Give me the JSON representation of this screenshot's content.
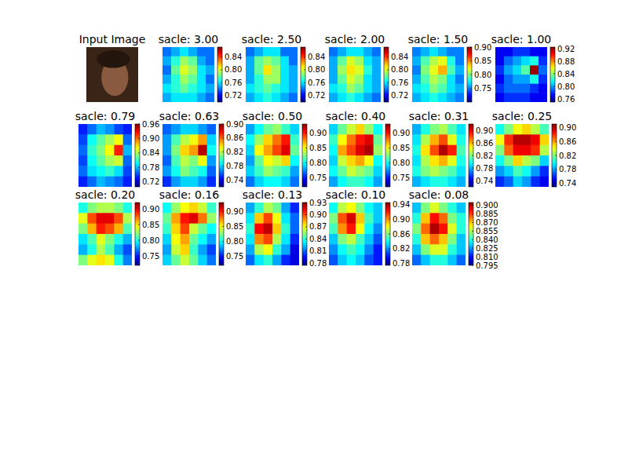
{
  "chart_data": [
    {
      "type": "image",
      "title": "Input Image",
      "tick_labels": false
    },
    {
      "type": "heatmap",
      "title": "sacle: 3.00",
      "tick_labels": false,
      "colorbar_lim": [
        0.7,
        0.87
      ],
      "colorbar_ticks": [
        0.72,
        0.76,
        {
          "value": 0.8,
          "label": "0.80"
        },
        0.84
      ],
      "cells": [
        [
          0.74,
          0.75,
          0.76,
          0.75,
          0.74,
          0.74
        ],
        [
          0.75,
          0.77,
          0.79,
          0.78,
          0.75,
          0.74
        ],
        [
          0.74,
          0.78,
          0.8,
          0.79,
          0.76,
          0.75
        ],
        [
          0.75,
          0.77,
          0.79,
          0.78,
          0.76,
          0.74
        ],
        [
          0.76,
          0.77,
          0.78,
          0.77,
          0.76,
          0.75
        ],
        [
          0.75,
          0.76,
          0.76,
          0.76,
          0.75,
          0.74
        ]
      ]
    },
    {
      "type": "heatmap",
      "title": "sacle: 2.50",
      "tick_labels": false,
      "colorbar_lim": [
        0.7,
        0.87
      ],
      "colorbar_ticks": [
        0.72,
        0.76,
        {
          "value": 0.8,
          "label": "0.80"
        },
        0.84
      ],
      "cells": [
        [
          0.74,
          0.75,
          0.76,
          0.76,
          0.74,
          0.74
        ],
        [
          0.75,
          0.78,
          0.79,
          0.78,
          0.76,
          0.74
        ],
        [
          0.75,
          0.78,
          0.81,
          0.79,
          0.76,
          0.75
        ],
        [
          0.75,
          0.77,
          0.79,
          0.79,
          0.76,
          0.75
        ],
        [
          0.76,
          0.77,
          0.78,
          0.77,
          0.76,
          0.75
        ],
        [
          0.75,
          0.76,
          0.77,
          0.76,
          0.75,
          0.74
        ]
      ]
    },
    {
      "type": "heatmap",
      "title": "sacle: 2.00",
      "tick_labels": false,
      "colorbar_lim": [
        0.7,
        0.87
      ],
      "colorbar_ticks": [
        0.72,
        0.76,
        {
          "value": 0.8,
          "label": "0.80"
        },
        0.84
      ],
      "cells": [
        [
          0.74,
          0.75,
          0.76,
          0.76,
          0.75,
          0.74
        ],
        [
          0.75,
          0.78,
          0.8,
          0.79,
          0.76,
          0.75
        ],
        [
          0.75,
          0.79,
          0.81,
          0.8,
          0.77,
          0.75
        ],
        [
          0.75,
          0.78,
          0.8,
          0.79,
          0.76,
          0.75
        ],
        [
          0.76,
          0.77,
          0.79,
          0.78,
          0.76,
          0.75
        ],
        [
          0.75,
          0.76,
          0.77,
          0.76,
          0.75,
          0.74
        ]
      ]
    },
    {
      "type": "heatmap",
      "title": "sacle: 1.50",
      "tick_labels": false,
      "colorbar_lim": [
        0.7,
        0.9
      ],
      "colorbar_ticks": [
        0.75,
        {
          "value": 0.8,
          "label": "0.80"
        },
        0.85,
        {
          "value": 0.9,
          "label": "0.90"
        }
      ],
      "cells": [
        [
          0.75,
          0.76,
          0.77,
          0.76,
          0.75,
          0.75
        ],
        [
          0.76,
          0.79,
          0.81,
          0.82,
          0.78,
          0.75
        ],
        [
          0.75,
          0.8,
          0.82,
          0.84,
          0.79,
          0.76
        ],
        [
          0.76,
          0.79,
          0.81,
          0.8,
          0.77,
          0.75
        ],
        [
          0.77,
          0.78,
          0.8,
          0.79,
          0.77,
          0.76
        ],
        [
          0.76,
          0.77,
          0.78,
          0.77,
          0.76,
          0.75
        ]
      ]
    },
    {
      "type": "heatmap",
      "title": "sacle: 1.00",
      "tick_labels": false,
      "colorbar_lim": [
        0.75,
        0.925
      ],
      "colorbar_ticks": [
        0.76,
        {
          "value": 0.8,
          "label": "0.80"
        },
        0.84,
        0.88,
        0.92
      ],
      "cells": [
        [
          0.77,
          0.77,
          0.78,
          0.78,
          0.77,
          0.77
        ],
        [
          0.77,
          0.79,
          0.8,
          0.81,
          0.82,
          0.78
        ],
        [
          0.78,
          0.8,
          0.81,
          0.83,
          0.92,
          0.79
        ],
        [
          0.77,
          0.79,
          0.8,
          0.8,
          0.82,
          0.78
        ],
        [
          0.78,
          0.79,
          0.79,
          0.79,
          0.78,
          0.77
        ],
        [
          0.77,
          0.78,
          0.78,
          0.78,
          0.77,
          0.77
        ]
      ]
    },
    {
      "type": "heatmap",
      "title": "sacle: 0.79",
      "tick_labels": false,
      "colorbar_lim": [
        0.7,
        0.96
      ],
      "colorbar_ticks": [
        0.72,
        0.78,
        0.84,
        {
          "value": 0.9,
          "label": "0.90"
        },
        0.96
      ],
      "cells": [
        [
          0.74,
          0.76,
          0.78,
          0.77,
          0.75,
          0.74
        ],
        [
          0.75,
          0.8,
          0.82,
          0.84,
          0.86,
          0.76
        ],
        [
          0.76,
          0.81,
          0.83,
          0.86,
          0.92,
          0.78
        ],
        [
          0.75,
          0.8,
          0.82,
          0.84,
          0.85,
          0.76
        ],
        [
          0.76,
          0.79,
          0.8,
          0.81,
          0.79,
          0.75
        ],
        [
          0.74,
          0.76,
          0.78,
          0.77,
          0.76,
          0.74
        ]
      ]
    },
    {
      "type": "heatmap",
      "title": "sacle: 0.63",
      "tick_labels": false,
      "colorbar_lim": [
        0.72,
        0.9
      ],
      "colorbar_ticks": [
        0.74,
        0.78,
        0.82,
        0.86,
        {
          "value": 0.9,
          "label": "0.90"
        }
      ],
      "cells": [
        [
          0.76,
          0.77,
          0.78,
          0.78,
          0.77,
          0.76
        ],
        [
          0.77,
          0.8,
          0.82,
          0.83,
          0.85,
          0.78
        ],
        [
          0.77,
          0.81,
          0.84,
          0.85,
          0.89,
          0.79
        ],
        [
          0.76,
          0.8,
          0.82,
          0.81,
          0.83,
          0.77
        ],
        [
          0.77,
          0.79,
          0.81,
          0.8,
          0.79,
          0.76
        ],
        [
          0.75,
          0.77,
          0.78,
          0.78,
          0.77,
          0.75
        ]
      ]
    },
    {
      "type": "heatmap",
      "title": "sacle: 0.50",
      "tick_labels": false,
      "colorbar_lim": [
        0.72,
        0.93
      ],
      "colorbar_ticks": [
        0.75,
        {
          "value": 0.8,
          "label": "0.80"
        },
        0.85,
        {
          "value": 0.9,
          "label": "0.90"
        }
      ],
      "cells": [
        [
          0.78,
          0.8,
          0.82,
          0.83,
          0.81,
          0.79
        ],
        [
          0.8,
          0.83,
          0.86,
          0.88,
          0.9,
          0.81
        ],
        [
          0.79,
          0.85,
          0.87,
          0.89,
          0.91,
          0.82
        ],
        [
          0.78,
          0.82,
          0.85,
          0.84,
          0.86,
          0.8
        ],
        [
          0.79,
          0.81,
          0.83,
          0.82,
          0.81,
          0.78
        ],
        [
          0.77,
          0.79,
          0.8,
          0.8,
          0.79,
          0.77
        ]
      ]
    },
    {
      "type": "heatmap",
      "title": "sacle: 0.40",
      "tick_labels": false,
      "colorbar_lim": [
        0.72,
        0.93
      ],
      "colorbar_ticks": [
        0.75,
        {
          "value": 0.8,
          "label": "0.80"
        },
        0.85,
        {
          "value": 0.9,
          "label": "0.90"
        }
      ],
      "cells": [
        [
          0.79,
          0.82,
          0.84,
          0.86,
          0.83,
          0.8
        ],
        [
          0.81,
          0.85,
          0.88,
          0.9,
          0.91,
          0.82
        ],
        [
          0.8,
          0.87,
          0.89,
          0.91,
          0.92,
          0.83
        ],
        [
          0.79,
          0.84,
          0.86,
          0.87,
          0.85,
          0.8
        ],
        [
          0.8,
          0.82,
          0.84,
          0.83,
          0.82,
          0.79
        ],
        [
          0.78,
          0.8,
          0.81,
          0.81,
          0.8,
          0.78
        ]
      ]
    },
    {
      "type": "heatmap",
      "title": "sacle: 0.31",
      "tick_labels": false,
      "colorbar_lim": [
        0.72,
        0.92
      ],
      "colorbar_ticks": [
        0.74,
        0.78,
        0.82,
        0.86,
        {
          "value": 0.9,
          "label": "0.90"
        }
      ],
      "cells": [
        [
          0.78,
          0.8,
          0.82,
          0.83,
          0.81,
          0.79
        ],
        [
          0.79,
          0.83,
          0.86,
          0.88,
          0.84,
          0.8
        ],
        [
          0.8,
          0.85,
          0.88,
          0.91,
          0.89,
          0.81
        ],
        [
          0.79,
          0.83,
          0.85,
          0.86,
          0.84,
          0.8
        ],
        [
          0.8,
          0.82,
          0.83,
          0.82,
          0.81,
          0.79
        ],
        [
          0.78,
          0.79,
          0.8,
          0.8,
          0.79,
          0.78
        ]
      ]
    },
    {
      "type": "heatmap",
      "title": "sacle: 0.25",
      "tick_labels": false,
      "colorbar_lim": [
        0.73,
        0.91
      ],
      "colorbar_ticks": [
        0.74,
        0.78,
        0.82,
        0.86,
        {
          "value": 0.9,
          "label": "0.90"
        }
      ],
      "cells": [
        [
          0.8,
          0.82,
          0.84,
          0.85,
          0.83,
          0.81
        ],
        [
          0.84,
          0.88,
          0.9,
          0.9,
          0.89,
          0.85
        ],
        [
          0.82,
          0.87,
          0.89,
          0.89,
          0.88,
          0.83
        ],
        [
          0.8,
          0.82,
          0.85,
          0.83,
          0.82,
          0.79
        ],
        [
          0.78,
          0.79,
          0.81,
          0.8,
          0.78,
          0.76
        ],
        [
          0.76,
          0.77,
          0.79,
          0.78,
          0.76,
          0.75
        ]
      ]
    },
    {
      "type": "heatmap",
      "title": "sacle: 0.20",
      "tick_labels": false,
      "colorbar_lim": [
        0.72,
        0.92
      ],
      "colorbar_ticks": [
        0.75,
        {
          "value": 0.8,
          "label": "0.80"
        },
        0.85,
        {
          "value": 0.9,
          "label": "0.90"
        }
      ],
      "cells": [
        [
          0.8,
          0.82,
          0.83,
          0.83,
          0.82,
          0.8
        ],
        [
          0.84,
          0.88,
          0.9,
          0.9,
          0.88,
          0.83
        ],
        [
          0.82,
          0.86,
          0.89,
          0.88,
          0.86,
          0.81
        ],
        [
          0.79,
          0.81,
          0.84,
          0.82,
          0.8,
          0.78
        ],
        [
          0.78,
          0.8,
          0.83,
          0.81,
          0.78,
          0.76
        ],
        [
          0.82,
          0.84,
          0.85,
          0.84,
          0.8,
          0.77
        ]
      ]
    },
    {
      "type": "heatmap",
      "title": "sacle: 0.16",
      "tick_labels": false,
      "colorbar_lim": [
        0.72,
        0.93
      ],
      "colorbar_ticks": [
        0.75,
        {
          "value": 0.8,
          "label": "0.80"
        },
        0.85,
        {
          "value": 0.9,
          "label": "0.90"
        }
      ],
      "cells": [
        [
          0.8,
          0.83,
          0.85,
          0.86,
          0.84,
          0.81
        ],
        [
          0.82,
          0.87,
          0.9,
          0.91,
          0.88,
          0.83
        ],
        [
          0.81,
          0.86,
          0.89,
          0.84,
          0.82,
          0.8
        ],
        [
          0.79,
          0.85,
          0.87,
          0.82,
          0.8,
          0.78
        ],
        [
          0.78,
          0.84,
          0.86,
          0.81,
          0.78,
          0.76
        ],
        [
          0.79,
          0.82,
          0.84,
          0.82,
          0.79,
          0.77
        ]
      ]
    },
    {
      "type": "heatmap",
      "title": "sacle: 0.13",
      "tick_labels": false,
      "colorbar_lim": [
        0.775,
        0.93
      ],
      "colorbar_ticks": [
        0.78,
        0.81,
        0.84,
        0.87,
        {
          "value": 0.9,
          "label": "0.90"
        },
        0.93
      ],
      "cells": [
        [
          0.82,
          0.84,
          0.86,
          0.85,
          0.82,
          0.8
        ],
        [
          0.83,
          0.88,
          0.9,
          0.87,
          0.83,
          0.81
        ],
        [
          0.84,
          0.91,
          0.92,
          0.88,
          0.84,
          0.81
        ],
        [
          0.83,
          0.89,
          0.9,
          0.86,
          0.83,
          0.8
        ],
        [
          0.82,
          0.86,
          0.87,
          0.84,
          0.82,
          0.79
        ],
        [
          0.81,
          0.83,
          0.84,
          0.82,
          0.8,
          0.79
        ]
      ]
    },
    {
      "type": "heatmap",
      "title": "sacle: 0.10",
      "tick_labels": false,
      "colorbar_lim": [
        0.775,
        0.945
      ],
      "colorbar_ticks": [
        0.78,
        0.82,
        0.86,
        {
          "value": 0.9,
          "label": "0.90"
        },
        0.94
      ],
      "cells": [
        [
          0.84,
          0.87,
          0.88,
          0.86,
          0.84,
          0.83
        ],
        [
          0.86,
          0.91,
          0.93,
          0.89,
          0.85,
          0.83
        ],
        [
          0.85,
          0.9,
          0.92,
          0.88,
          0.84,
          0.82
        ],
        [
          0.83,
          0.86,
          0.87,
          0.85,
          0.83,
          0.81
        ],
        [
          0.82,
          0.84,
          0.85,
          0.84,
          0.82,
          0.8
        ],
        [
          0.81,
          0.83,
          0.84,
          0.83,
          0.81,
          0.8
        ]
      ]
    },
    {
      "type": "heatmap",
      "title": "sacle: 0.08",
      "tick_labels": false,
      "colorbar_lim": [
        0.795,
        0.905
      ],
      "colorbar_ticks": [
        0.795,
        {
          "value": 0.81,
          "label": "0.810"
        },
        0.825,
        {
          "value": 0.84,
          "label": "0.840"
        },
        0.855,
        {
          "value": 0.87,
          "label": "0.870"
        },
        0.885,
        {
          "value": 0.9,
          "label": "0.900"
        }
      ],
      "cells": [
        [
          0.83,
          0.85,
          0.86,
          0.85,
          0.84,
          0.83
        ],
        [
          0.84,
          0.87,
          0.89,
          0.88,
          0.85,
          0.84
        ],
        [
          0.85,
          0.88,
          0.9,
          0.89,
          0.86,
          0.84
        ],
        [
          0.84,
          0.87,
          0.88,
          0.87,
          0.85,
          0.83
        ],
        [
          0.83,
          0.85,
          0.86,
          0.86,
          0.84,
          0.83
        ],
        [
          0.82,
          0.83,
          0.84,
          0.84,
          0.83,
          0.82
        ]
      ]
    }
  ]
}
